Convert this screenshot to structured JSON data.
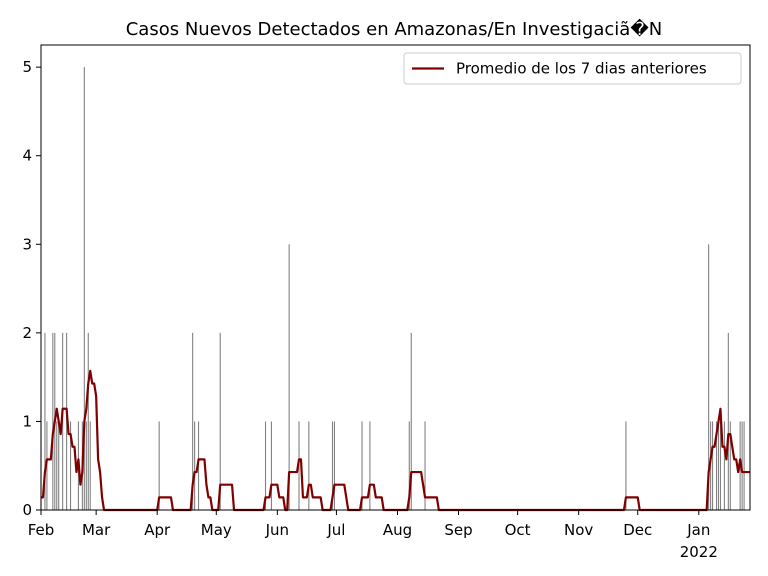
{
  "chart_data": {
    "type": "bar",
    "title": "Casos Nuevos Detectados en Amazonas/En Investigaciã�N",
    "xlabel": "",
    "ylabel": "",
    "x_range": [
      "2021-02-01",
      "2022-01-27"
    ],
    "ylim": [
      0,
      5.25
    ],
    "y_ticks": [
      0,
      1,
      2,
      3,
      4,
      5
    ],
    "x_ticks": [
      {
        "date": "2021-02-01",
        "label": "Feb"
      },
      {
        "date": "2021-03-01",
        "label": "Mar"
      },
      {
        "date": "2021-04-01",
        "label": "Apr"
      },
      {
        "date": "2021-05-01",
        "label": "May"
      },
      {
        "date": "2021-06-01",
        "label": "Jun"
      },
      {
        "date": "2021-07-01",
        "label": "Jul"
      },
      {
        "date": "2021-08-01",
        "label": "Aug"
      },
      {
        "date": "2021-09-01",
        "label": "Sep"
      },
      {
        "date": "2021-10-01",
        "label": "Oct"
      },
      {
        "date": "2021-11-01",
        "label": "Nov"
      },
      {
        "date": "2021-12-01",
        "label": "Dec"
      },
      {
        "date": "2022-01-01",
        "label": "Jan",
        "sublabel": "2022"
      }
    ],
    "bar_color": "#808080",
    "grid": false,
    "series": [
      {
        "kind": "bar",
        "data": [
          [
            "2021-02-01",
            1
          ],
          [
            "2021-02-03",
            2
          ],
          [
            "2021-02-04",
            1
          ],
          [
            "2021-02-07",
            2
          ],
          [
            "2021-02-08",
            2
          ],
          [
            "2021-02-09",
            1
          ],
          [
            "2021-02-10",
            1
          ],
          [
            "2021-02-12",
            2
          ],
          [
            "2021-02-14",
            2
          ],
          [
            "2021-02-16",
            1
          ],
          [
            "2021-02-20",
            1
          ],
          [
            "2021-02-22",
            1
          ],
          [
            "2021-02-23",
            5
          ],
          [
            "2021-02-24",
            1
          ],
          [
            "2021-02-25",
            2
          ],
          [
            "2021-02-26",
            1
          ],
          [
            "2021-04-02",
            1
          ],
          [
            "2021-04-19",
            2
          ],
          [
            "2021-04-20",
            1
          ],
          [
            "2021-04-22",
            1
          ],
          [
            "2021-05-03",
            2
          ],
          [
            "2021-05-26",
            1
          ],
          [
            "2021-05-29",
            1
          ],
          [
            "2021-06-07",
            3
          ],
          [
            "2021-06-12",
            1
          ],
          [
            "2021-06-17",
            1
          ],
          [
            "2021-06-29",
            1
          ],
          [
            "2021-06-30",
            1
          ],
          [
            "2021-07-14",
            1
          ],
          [
            "2021-07-18",
            1
          ],
          [
            "2021-08-07",
            1
          ],
          [
            "2021-08-08",
            2
          ],
          [
            "2021-08-15",
            1
          ],
          [
            "2021-11-25",
            1
          ],
          [
            "2022-01-06",
            3
          ],
          [
            "2022-01-07",
            1
          ],
          [
            "2022-01-08",
            1
          ],
          [
            "2022-01-10",
            1
          ],
          [
            "2022-01-11",
            1
          ],
          [
            "2022-01-12",
            1
          ],
          [
            "2022-01-14",
            1
          ],
          [
            "2022-01-16",
            2
          ],
          [
            "2022-01-17",
            1
          ],
          [
            "2022-01-22",
            1
          ],
          [
            "2022-01-23",
            1
          ],
          [
            "2022-01-24",
            1
          ]
        ]
      },
      {
        "kind": "line",
        "name": "Promedio de los 7 dias anteriores",
        "color": "#800000",
        "window_days": 7
      }
    ],
    "legend": {
      "position": "upper-right"
    }
  }
}
